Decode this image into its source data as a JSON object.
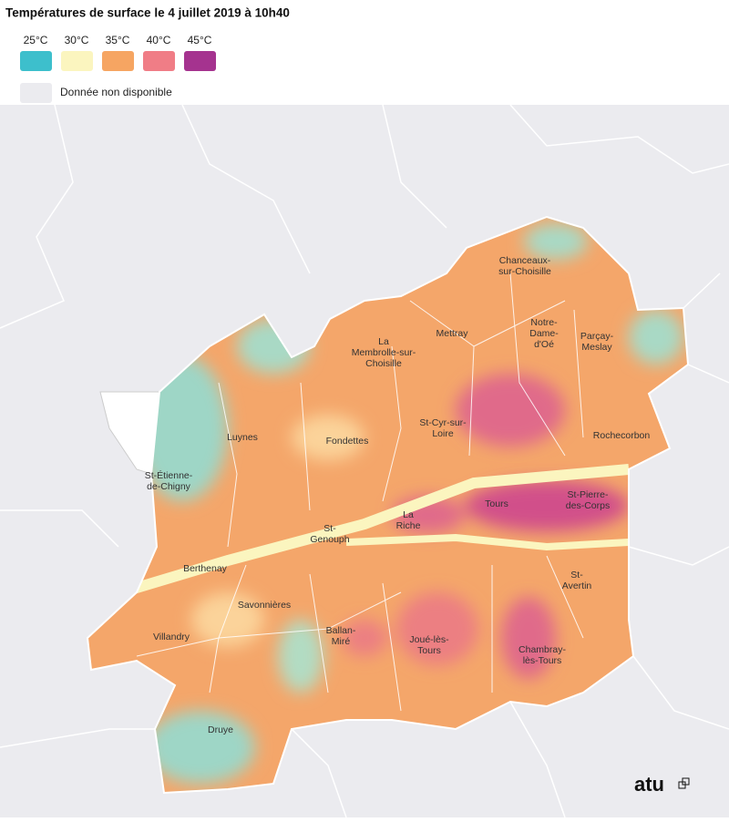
{
  "title": "Températures de surface le 4 juillet 2019 à 10h40",
  "legend": {
    "items": [
      {
        "label": "25°C",
        "color": "#3dbfcc"
      },
      {
        "label": "30°C",
        "color": "#fbf5bf"
      },
      {
        "label": "35°C",
        "color": "#f6a562"
      },
      {
        "label": "40°C",
        "color": "#f07d86"
      },
      {
        "label": "45°C",
        "color": "#a5338f"
      }
    ],
    "no_data": {
      "label": "Donnée non disponible",
      "color": "#ebebef"
    }
  },
  "places": [
    {
      "lines": [
        "Chanceaux-",
        "sur-Choisille"
      ]
    },
    {
      "lines": [
        "Mettray"
      ]
    },
    {
      "lines": [
        "Notre-",
        "Dame-",
        "d'Oé"
      ]
    },
    {
      "lines": [
        "Parçay-",
        "Meslay"
      ]
    },
    {
      "lines": [
        "La",
        "Membrolle-sur-",
        "Choisille"
      ]
    },
    {
      "lines": [
        "St-Cyr-sur-",
        "Loire"
      ]
    },
    {
      "lines": [
        "Rochecorbon"
      ]
    },
    {
      "lines": [
        "Luynes"
      ]
    },
    {
      "lines": [
        "Fondettes"
      ]
    },
    {
      "lines": [
        "St-Étienne-",
        "de-Chigny"
      ]
    },
    {
      "lines": [
        "Tours"
      ]
    },
    {
      "lines": [
        "St-Pierre-",
        "des-Corps"
      ]
    },
    {
      "lines": [
        "La",
        "Riche"
      ]
    },
    {
      "lines": [
        "St-",
        "Genouph"
      ]
    },
    {
      "lines": [
        "Berthenay"
      ]
    },
    {
      "lines": [
        "St-",
        "Avertin"
      ]
    },
    {
      "lines": [
        "Savonnières"
      ]
    },
    {
      "lines": [
        "Villandry"
      ]
    },
    {
      "lines": [
        "Ballan-",
        "Miré"
      ]
    },
    {
      "lines": [
        "Joué-lès-",
        "Tours"
      ]
    },
    {
      "lines": [
        "Chambray-",
        "lès-Tours"
      ]
    },
    {
      "lines": [
        "Druye"
      ]
    }
  ],
  "logo": "atu"
}
